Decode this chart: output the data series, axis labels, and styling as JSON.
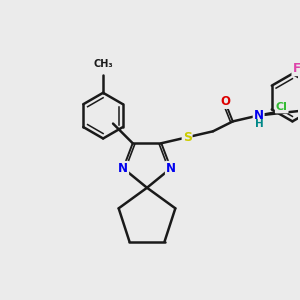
{
  "bg_color": "#ebebeb",
  "bond_color": "#1a1a1a",
  "atom_colors": {
    "N": "#0000ee",
    "O": "#dd0000",
    "S": "#cccc00",
    "Cl": "#33bb33",
    "F": "#dd44aa",
    "H": "#008888",
    "C": "#1a1a1a"
  },
  "figsize": [
    3.0,
    3.0
  ],
  "dpi": 100
}
